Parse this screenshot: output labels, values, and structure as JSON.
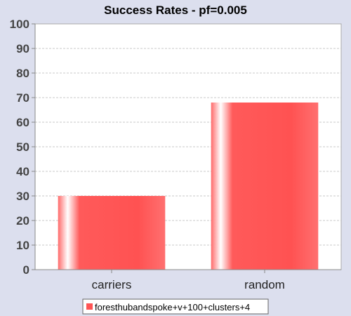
{
  "chart_data": {
    "type": "bar",
    "title": "Success Rates - pf=0.005",
    "xlabel": "",
    "ylabel": "",
    "categories": [
      "carriers",
      "random"
    ],
    "series": [
      {
        "name": "foresthubandspoke+v+100+clusters+4",
        "values": [
          30,
          68
        ]
      }
    ],
    "ylim": [
      0,
      100
    ],
    "yticks": [
      "0",
      "10",
      "20",
      "30",
      "40",
      "50",
      "60",
      "70",
      "80",
      "90",
      "100"
    ],
    "grid": true,
    "legend_position": "bottom",
    "colors": {
      "background": "#dcdfee",
      "plot_background": "#ffffff",
      "bar": "#ff5555",
      "grid": "#c8c8c8",
      "axis": "#888888"
    }
  }
}
